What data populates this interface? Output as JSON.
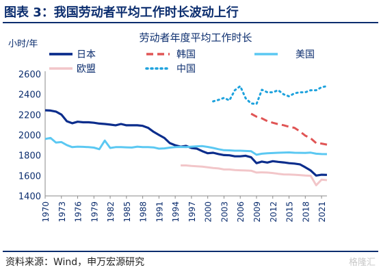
{
  "figure": {
    "title": "图表 3：我国劳动者平均工作时长波动上行",
    "source": "资料来源：Wind，申万宏源研究",
    "watermark": "格隆汇"
  },
  "chart_data": {
    "type": "line",
    "title": "劳动者年度平均工作时长",
    "ylabel": "小时/年",
    "xlabel": "",
    "xlim": [
      1970,
      2022
    ],
    "ylim": [
      1400,
      2600
    ],
    "yticks": [
      1400,
      1600,
      1800,
      2000,
      2200,
      2400,
      2600
    ],
    "xticks": [
      1970,
      1973,
      1976,
      1979,
      1982,
      1985,
      1988,
      1991,
      1994,
      1997,
      2000,
      2003,
      2006,
      2009,
      2012,
      2015,
      2018,
      2021
    ],
    "legend": "top, two columns",
    "grid": false,
    "series": [
      {
        "name": "日本",
        "color": "#0b2d8c",
        "style": "solid",
        "width": 3.2,
        "x": [
          1970,
          1971,
          1972,
          1973,
          1974,
          1975,
          1976,
          1977,
          1978,
          1979,
          1980,
          1981,
          1982,
          1983,
          1984,
          1985,
          1986,
          1987,
          1988,
          1989,
          1990,
          1991,
          1992,
          1993,
          1994,
          1995,
          1996,
          1997,
          1998,
          1999,
          2000,
          2001,
          2002,
          2003,
          2004,
          2005,
          2006,
          2007,
          2008,
          2009,
          2010,
          2011,
          2012,
          2013,
          2014,
          2015,
          2016,
          2017,
          2018,
          2019,
          2020,
          2021,
          2022
        ],
        "values": [
          2243,
          2240,
          2230,
          2200,
          2135,
          2115,
          2130,
          2125,
          2125,
          2120,
          2112,
          2108,
          2102,
          2095,
          2108,
          2095,
          2095,
          2095,
          2090,
          2070,
          2031,
          2000,
          1970,
          1920,
          1898,
          1884,
          1892,
          1872,
          1865,
          1840,
          1820,
          1825,
          1812,
          1802,
          1800,
          1790,
          1790,
          1795,
          1780,
          1722,
          1738,
          1728,
          1742,
          1735,
          1730,
          1722,
          1718,
          1711,
          1682,
          1650,
          1600,
          1608,
          1607
        ]
      },
      {
        "name": "韩国",
        "color": "#e05555",
        "style": "dashed",
        "width": 3,
        "x": [
          2008,
          2009,
          2010,
          2011,
          2012,
          2013,
          2014,
          2015,
          2016,
          2017,
          2018,
          2019,
          2020,
          2021,
          2022
        ],
        "values": [
          2209,
          2180,
          2163,
          2136,
          2120,
          2106,
          2096,
          2080,
          2070,
          2035,
          1993,
          1967,
          1920,
          1915,
          1905
        ]
      },
      {
        "name": "美国",
        "color": "#5bc8f2",
        "style": "solid",
        "width": 3,
        "x": [
          1970,
          1971,
          1972,
          1973,
          1974,
          1975,
          1976,
          1977,
          1978,
          1979,
          1980,
          1981,
          1982,
          1983,
          1984,
          1985,
          1986,
          1987,
          1988,
          1989,
          1990,
          1991,
          1992,
          1993,
          1994,
          1995,
          1996,
          1997,
          1998,
          1999,
          2000,
          2001,
          2002,
          2003,
          2004,
          2005,
          2006,
          2007,
          2008,
          2009,
          2010,
          2011,
          2012,
          2013,
          2014,
          2015,
          2016,
          2017,
          2018,
          2019,
          2020,
          2021,
          2022
        ],
        "values": [
          1960,
          1970,
          1925,
          1930,
          1900,
          1880,
          1885,
          1883,
          1880,
          1875,
          1860,
          1945,
          1872,
          1880,
          1880,
          1878,
          1876,
          1885,
          1880,
          1880,
          1877,
          1865,
          1868,
          1875,
          1880,
          1882,
          1880,
          1885,
          1888,
          1890,
          1882,
          1872,
          1860,
          1850,
          1848,
          1845,
          1845,
          1842,
          1840,
          1805,
          1815,
          1820,
          1822,
          1825,
          1826,
          1828,
          1825,
          1824,
          1823,
          1826,
          1815,
          1812,
          1811
        ]
      },
      {
        "name": "中国",
        "color": "#1ea2dd",
        "style": "dotted",
        "width": 3,
        "x": [
          2001,
          2002,
          2003,
          2004,
          2005,
          2006,
          2007,
          2008,
          2009,
          2010,
          2011,
          2012,
          2013,
          2014,
          2015,
          2016,
          2017,
          2018,
          2019,
          2020,
          2021,
          2022
        ],
        "values": [
          2330,
          2345,
          2365,
          2340,
          2440,
          2480,
          2360,
          2310,
          2305,
          2445,
          2420,
          2420,
          2440,
          2400,
          2380,
          2410,
          2420,
          2420,
          2440,
          2440,
          2470,
          2480
        ]
      },
      {
        "name": "欧盟",
        "color": "#f2c6c9",
        "style": "solid",
        "width": 3,
        "x": [
          1995,
          1996,
          1997,
          1998,
          1999,
          2000,
          2001,
          2002,
          2003,
          2004,
          2005,
          2006,
          2007,
          2008,
          2009,
          2010,
          2011,
          2012,
          2013,
          2014,
          2015,
          2016,
          2017,
          2018,
          2019,
          2020,
          2021,
          2022
        ],
        "values": [
          1700,
          1700,
          1695,
          1692,
          1688,
          1682,
          1675,
          1670,
          1660,
          1660,
          1655,
          1652,
          1650,
          1648,
          1630,
          1632,
          1630,
          1625,
          1618,
          1612,
          1610,
          1608,
          1605,
          1600,
          1598,
          1505,
          1560,
          1555
        ]
      }
    ]
  }
}
